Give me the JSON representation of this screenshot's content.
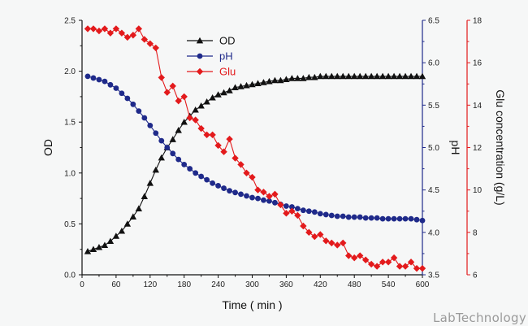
{
  "watermark": "LabTechnology",
  "chart_data": {
    "type": "line",
    "title": "",
    "xlabel": "Time ( min )",
    "xlim": [
      0,
      600
    ],
    "xticks": [
      "0",
      "60",
      "120",
      "180",
      "240",
      "300",
      "360",
      "420",
      "480",
      "540",
      "600"
    ],
    "legend_position": "top-left",
    "grid": false,
    "axes": {
      "left": {
        "label": "OD",
        "lim": [
          0,
          2.5
        ],
        "ticks": [
          "0.0",
          "0.5",
          "1.0",
          "1.5",
          "2.0",
          "2.5"
        ],
        "color": "#111111"
      },
      "right1": {
        "label": "pH",
        "lim": [
          3.5,
          6.5
        ],
        "ticks": [
          "3.5",
          "4.0",
          "4.5",
          "5.0",
          "5.5",
          "6.0",
          "6.5"
        ],
        "color": "#1f2a8a"
      },
      "right2": {
        "label": "Glu concentration (g/L)",
        "lim": [
          6,
          18
        ],
        "ticks": [
          "6",
          "8",
          "10",
          "12",
          "14",
          "16",
          "18"
        ],
        "color": "#e31a1c"
      }
    },
    "series": [
      {
        "name": "OD",
        "axis": "left",
        "marker": "triangle",
        "color": "#111111",
        "x": [
          10,
          20,
          30,
          40,
          50,
          60,
          70,
          80,
          90,
          100,
          110,
          120,
          130,
          140,
          150,
          160,
          170,
          180,
          190,
          200,
          210,
          220,
          230,
          240,
          250,
          260,
          270,
          280,
          290,
          300,
          310,
          320,
          330,
          340,
          350,
          360,
          370,
          380,
          390,
          400,
          410,
          420,
          430,
          440,
          450,
          460,
          470,
          480,
          490,
          500,
          510,
          520,
          530,
          540,
          550,
          560,
          570,
          580,
          590,
          600
        ],
        "y": [
          0.23,
          0.25,
          0.27,
          0.29,
          0.33,
          0.38,
          0.43,
          0.5,
          0.57,
          0.65,
          0.77,
          0.9,
          1.03,
          1.15,
          1.25,
          1.33,
          1.42,
          1.5,
          1.56,
          1.62,
          1.66,
          1.7,
          1.74,
          1.77,
          1.79,
          1.81,
          1.84,
          1.85,
          1.86,
          1.87,
          1.88,
          1.89,
          1.9,
          1.91,
          1.91,
          1.92,
          1.93,
          1.93,
          1.93,
          1.94,
          1.94,
          1.95,
          1.95,
          1.95,
          1.95,
          1.95,
          1.95,
          1.95,
          1.95,
          1.95,
          1.95,
          1.95,
          1.95,
          1.95,
          1.95,
          1.95,
          1.95,
          1.95,
          1.95,
          1.95
        ]
      },
      {
        "name": "pH",
        "axis": "right1",
        "marker": "circle",
        "color": "#1f2a8a",
        "x": [
          10,
          20,
          30,
          40,
          50,
          60,
          70,
          80,
          90,
          100,
          110,
          120,
          130,
          140,
          150,
          160,
          170,
          180,
          190,
          200,
          210,
          220,
          230,
          240,
          250,
          260,
          270,
          280,
          290,
          300,
          310,
          320,
          330,
          340,
          350,
          360,
          370,
          380,
          390,
          400,
          410,
          420,
          430,
          440,
          450,
          460,
          470,
          480,
          490,
          500,
          510,
          520,
          530,
          540,
          550,
          560,
          570,
          580,
          590,
          600
        ],
        "y": [
          5.84,
          5.82,
          5.8,
          5.78,
          5.74,
          5.7,
          5.64,
          5.58,
          5.51,
          5.43,
          5.35,
          5.26,
          5.17,
          5.08,
          5.0,
          4.93,
          4.86,
          4.8,
          4.75,
          4.7,
          4.66,
          4.62,
          4.58,
          4.55,
          4.52,
          4.49,
          4.47,
          4.45,
          4.43,
          4.41,
          4.4,
          4.38,
          4.37,
          4.35,
          4.33,
          4.31,
          4.3,
          4.28,
          4.26,
          4.25,
          4.24,
          4.22,
          4.21,
          4.2,
          4.19,
          4.19,
          4.18,
          4.18,
          4.18,
          4.17,
          4.17,
          4.17,
          4.16,
          4.16,
          4.16,
          4.16,
          4.16,
          4.16,
          4.15,
          4.14
        ]
      },
      {
        "name": "Glu",
        "axis": "right2",
        "marker": "diamond",
        "color": "#e31a1c",
        "x": [
          10,
          20,
          30,
          40,
          50,
          60,
          70,
          80,
          90,
          100,
          110,
          120,
          130,
          140,
          150,
          160,
          170,
          180,
          190,
          200,
          210,
          220,
          230,
          240,
          250,
          260,
          270,
          280,
          290,
          300,
          310,
          320,
          330,
          340,
          350,
          360,
          370,
          380,
          390,
          400,
          410,
          420,
          430,
          440,
          450,
          460,
          470,
          480,
          490,
          500,
          510,
          520,
          530,
          540,
          550,
          560,
          570,
          580,
          590,
          600
        ],
        "y": [
          17.6,
          17.6,
          17.5,
          17.6,
          17.4,
          17.6,
          17.4,
          17.2,
          17.3,
          17.6,
          17.1,
          16.9,
          16.7,
          15.3,
          14.6,
          14.9,
          14.2,
          14.4,
          13.4,
          13.3,
          12.9,
          12.6,
          12.6,
          12.1,
          11.8,
          12.4,
          11.5,
          11.2,
          10.8,
          10.6,
          10.0,
          9.9,
          9.7,
          9.8,
          9.3,
          8.9,
          9.0,
          8.8,
          8.3,
          8.0,
          7.8,
          7.9,
          7.6,
          7.5,
          7.4,
          7.5,
          6.9,
          6.8,
          6.9,
          6.7,
          6.5,
          6.4,
          6.6,
          6.6,
          6.8,
          6.4,
          6.4,
          6.6,
          6.3,
          6.3
        ]
      }
    ]
  }
}
